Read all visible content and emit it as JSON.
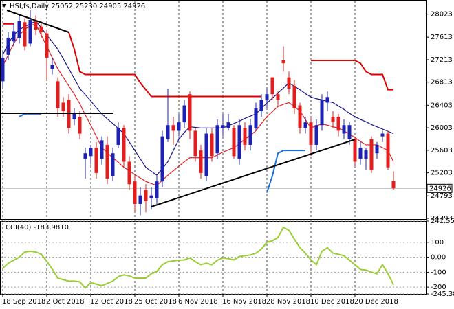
{
  "chart_data": [
    {
      "type": "candlestick",
      "title": "HSI,fs,Daily  25052 25230 24905 24926",
      "categories": [
        "18 Sep 2018",
        null,
        null,
        null,
        null,
        null,
        null,
        null,
        "2 Oct 2018",
        null,
        null,
        null,
        null,
        null,
        null,
        null,
        "12 Oct 2018",
        null,
        null,
        null,
        null,
        null,
        null,
        null,
        "25 Oct 2018",
        null,
        null,
        null,
        null,
        null,
        null,
        null,
        "6 Nov 2018",
        null,
        null,
        null,
        null,
        null,
        null,
        null,
        "16 Nov 2018",
        null,
        null,
        null,
        null,
        null,
        null,
        null,
        "28 Nov 2018",
        null,
        null,
        null,
        null,
        null,
        null,
        null,
        "10 Dec 2018",
        null,
        null,
        null,
        null,
        null,
        null,
        null,
        "20 Dec 2018",
        null,
        null,
        null,
        null,
        null,
        null,
        null
      ],
      "open": [
        26830,
        27300,
        27540,
        27600,
        27880,
        27500,
        27900,
        27800,
        27680,
        27050,
        26830,
        26450,
        26500,
        26150,
        26200,
        25450,
        25500,
        25650,
        25450,
        25700,
        25150,
        25700,
        26000,
        25400,
        25050,
        24650,
        24900,
        24750,
        24750,
        25050,
        25800,
        26050,
        25950,
        26100,
        26600,
        25950,
        25600,
        25150,
        25900,
        25550,
        26000,
        26000,
        26000,
        25450,
        26000,
        25700,
        26000,
        26300,
        26500,
        26900,
        26600,
        27200,
        26900,
        26750,
        26400,
        26000,
        26100,
        25700,
        26050,
        26450,
        26200,
        26200,
        25900,
        25800,
        25800,
        25450,
        25450,
        25800,
        25550,
        25850,
        25900,
        25052
      ],
      "high": [
        27370,
        27700,
        27850,
        28000,
        27950,
        28100,
        28000,
        27900,
        27750,
        27250,
        26900,
        26550,
        26600,
        26350,
        26300,
        25650,
        25700,
        25750,
        25850,
        25850,
        25650,
        26100,
        26050,
        25500,
        25150,
        24950,
        25000,
        24950,
        25150,
        25950,
        26700,
        26200,
        26250,
        26500,
        26650,
        26000,
        25700,
        26000,
        26000,
        26150,
        26250,
        26250,
        26050,
        26150,
        26100,
        26150,
        26450,
        26600,
        26700,
        26900,
        26650,
        27450,
        27000,
        26850,
        26450,
        26200,
        26200,
        26150,
        26600,
        26650,
        26300,
        26250,
        26150,
        26100,
        25850,
        25750,
        25650,
        25850,
        25750,
        25950,
        25950,
        25230
      ],
      "low": [
        26700,
        27200,
        27450,
        27500,
        27380,
        27450,
        27650,
        27600,
        26850,
        26950,
        26200,
        26200,
        25900,
        26050,
        25800,
        25100,
        25350,
        25100,
        25350,
        25000,
        25050,
        25650,
        25300,
        24900,
        24500,
        24450,
        24500,
        24550,
        24650,
        24950,
        25750,
        25700,
        25850,
        26000,
        25800,
        25400,
        25100,
        25050,
        25400,
        25450,
        25850,
        25950,
        25450,
        25350,
        25600,
        25600,
        25950,
        26200,
        26350,
        26500,
        26400,
        27000,
        26600,
        26250,
        25900,
        25900,
        25500,
        25600,
        25950,
        26300,
        26000,
        25850,
        25800,
        25700,
        25300,
        25350,
        25250,
        25200,
        25450,
        25750,
        25250,
        24905
      ],
      "close": [
        27250,
        27600,
        27720,
        27900,
        27450,
        27920,
        27750,
        27700,
        27250,
        27120,
        26350,
        26300,
        26000,
        26250,
        25900,
        25550,
        25650,
        25200,
        25780,
        25100,
        25550,
        26000,
        25400,
        25000,
        24650,
        24800,
        24700,
        24800,
        25050,
        25850,
        26050,
        25950,
        26100,
        26400,
        25950,
        25500,
        25200,
        25900,
        25500,
        26050,
        26050,
        26100,
        25500,
        26050,
        25700,
        26050,
        26350,
        26500,
        26600,
        26600,
        26500,
        27150,
        26700,
        26350,
        26000,
        26100,
        25700,
        26050,
        26500,
        26550,
        26100,
        25950,
        26050,
        26050,
        25400,
        25650,
        25600,
        25250,
        25700,
        25900,
        25300,
        24926
      ],
      "up_color": "#1c22b4",
      "down_color": "#e01e1e",
      "overlays": [
        {
          "color": "#e02020",
          "values": [
            27100,
            27300,
            27500,
            27650,
            27750,
            27820,
            27850,
            27650,
            27450,
            27250,
            27050,
            26900,
            26750,
            26600,
            26430,
            26230,
            26050,
            25850,
            25650,
            25560,
            25470,
            25390,
            25300,
            25240,
            25170,
            25110,
            25050,
            25010,
            24980,
            25070,
            25160,
            25240,
            25320,
            25400,
            25470,
            25470,
            25470,
            25470,
            25470,
            25520,
            25570,
            25610,
            25650,
            25720,
            25800,
            25870,
            25950,
            26080,
            26200,
            26290,
            26380,
            26420,
            26450,
            26380,
            26300,
            26150,
            26000,
            26040,
            26070,
            26050,
            26020,
            26000,
            25950,
            25890,
            25830,
            25760,
            25700,
            25700,
            25700,
            25650,
            25600,
            25400
          ]
        },
        {
          "color": "#16168c",
          "values": [
            27300,
            27500,
            27650,
            27750,
            27800,
            27850,
            27900,
            27780,
            27650,
            27530,
            27400,
            27230,
            27050,
            26880,
            26700,
            26590,
            26480,
            26360,
            26250,
            26160,
            26080,
            25990,
            25900,
            25750,
            25600,
            25450,
            25300,
            25230,
            25160,
            25280,
            25400,
            25600,
            25800,
            25920,
            26020,
            26010,
            26000,
            26000,
            26000,
            26000,
            26000,
            26040,
            26080,
            26120,
            26170,
            26210,
            26250,
            26350,
            26440,
            26530,
            26620,
            26710,
            26800,
            26740,
            26680,
            26610,
            26550,
            26520,
            26500,
            26470,
            26450,
            26390,
            26330,
            26260,
            26200,
            26150,
            26110,
            26060,
            26020,
            25980,
            25940,
            25900
          ]
        },
        {
          "color": "#e00000",
          "values": [
            27850,
            27850,
            27850,
            null,
            null,
            null,
            null,
            null,
            null,
            null,
            null,
            null,
            27700,
            27400,
            27000,
            26950,
            26950,
            26950,
            26950,
            26950,
            26950,
            26950,
            26950,
            26950,
            26950,
            26800,
            26680,
            26560,
            26560,
            26560,
            26560,
            26560,
            26560,
            26560,
            26560,
            26560,
            26560,
            26560,
            26560,
            26560,
            26560,
            26560,
            26560,
            26560,
            26560,
            26560,
            26560,
            26560,
            null,
            null,
            null,
            null,
            null,
            null,
            null,
            null,
            27200,
            27200,
            27200,
            27200,
            27200,
            27200,
            27200,
            27200,
            27200,
            27150,
            27000,
            26950,
            26950,
            26950,
            26680,
            26680
          ]
        },
        {
          "color": "#1e6ee0",
          "values": [
            null,
            null,
            null,
            26200,
            26250,
            26250,
            26250,
            26250,
            null,
            null,
            null,
            null,
            null,
            null,
            null,
            null,
            null,
            null,
            null,
            null,
            null,
            null,
            null,
            null,
            null,
            null,
            null,
            null,
            null,
            null,
            null,
            null,
            null,
            null,
            null,
            null,
            null,
            null,
            null,
            null,
            null,
            null,
            null,
            null,
            null,
            null,
            null,
            null,
            24850,
            25150,
            25550,
            25600,
            25600,
            25600,
            25600,
            25600,
            null,
            null,
            null,
            null,
            null,
            null,
            null,
            null,
            null,
            null,
            null,
            null,
            null,
            null,
            null,
            null
          ]
        }
      ],
      "ylim": [
        24393,
        28250
      ],
      "yticks": [
        28023,
        27613,
        27213,
        26813,
        26403,
        26003,
        25603,
        25203,
        24793,
        24393
      ]
    },
    {
      "type": "line",
      "title": "CCI(40) -183.9810",
      "series": [
        {
          "color": "#9acd32",
          "values": [
            -73,
            -40,
            -20,
            0,
            35,
            40,
            35,
            20,
            -27,
            -80,
            -140,
            -150,
            -160,
            -160,
            -165,
            -205,
            -170,
            -180,
            -190,
            -175,
            -160,
            -130,
            -118,
            -125,
            -140,
            -140,
            -140,
            -110,
            -95,
            -50,
            -30,
            -25,
            -20,
            -18,
            -5,
            -30,
            -50,
            -40,
            -50,
            -20,
            -5,
            -10,
            -18,
            5,
            10,
            15,
            27,
            55,
            100,
            110,
            132,
            200,
            180,
            120,
            64,
            27,
            -18,
            -50,
            40,
            64,
            27,
            20,
            10,
            -20,
            -50,
            -82,
            -86,
            -100,
            -110,
            -50,
            -110,
            -183.981
          ]
        }
      ],
      "ylim": [
        -245.384,
        241.5552
      ],
      "yticks": [
        241.5552,
        100,
        {
          "value": 0,
          "label": "0.00"
        },
        -100,
        -200,
        -245.384
      ]
    }
  ]
}
